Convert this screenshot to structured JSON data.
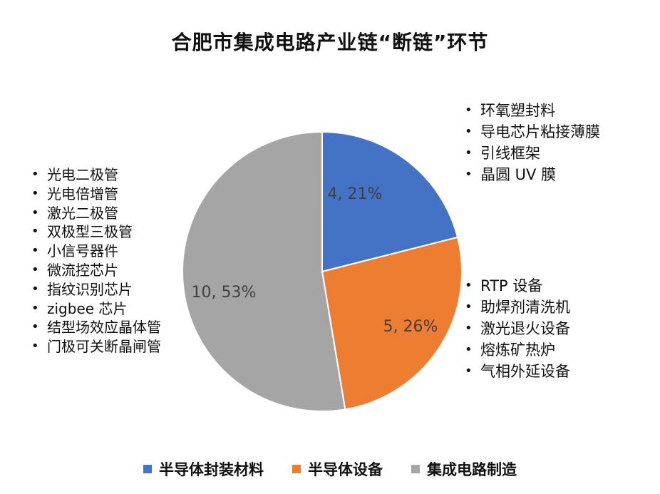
{
  "chart_data": {
    "type": "pie",
    "title": "合肥市集成电路产业链“断链”环节",
    "categories": [
      "半导体封装材料",
      "半导体设备",
      "集成电路制造"
    ],
    "values": [
      4,
      5,
      10
    ],
    "percents": [
      21,
      26,
      53
    ],
    "data_labels": [
      "4, 21%",
      "5, 26%",
      "10, 53%"
    ],
    "colors": [
      "#4472c4",
      "#ed7d31",
      "#a5a5a5"
    ],
    "legend_position": "bottom"
  },
  "annotations": {
    "packaging_materials": [
      "环氧塑封料",
      "导电芯片粘接薄膜",
      "引线框架",
      "晶圆 UV 膜"
    ],
    "equipment": [
      "RTP 设备",
      "助焊剂清洗机",
      "激光退火设备",
      "熔炼矿热炉",
      "气相外延设备"
    ],
    "manufacturing": [
      "光电二极管",
      "光电倍增管",
      "激光二极管",
      "双极型三极管",
      "小信号器件",
      "微流控芯片",
      "指纹识别芯片",
      "zigbee 芯片",
      "结型场效应晶体管",
      "门极可关断晶闸管"
    ]
  }
}
